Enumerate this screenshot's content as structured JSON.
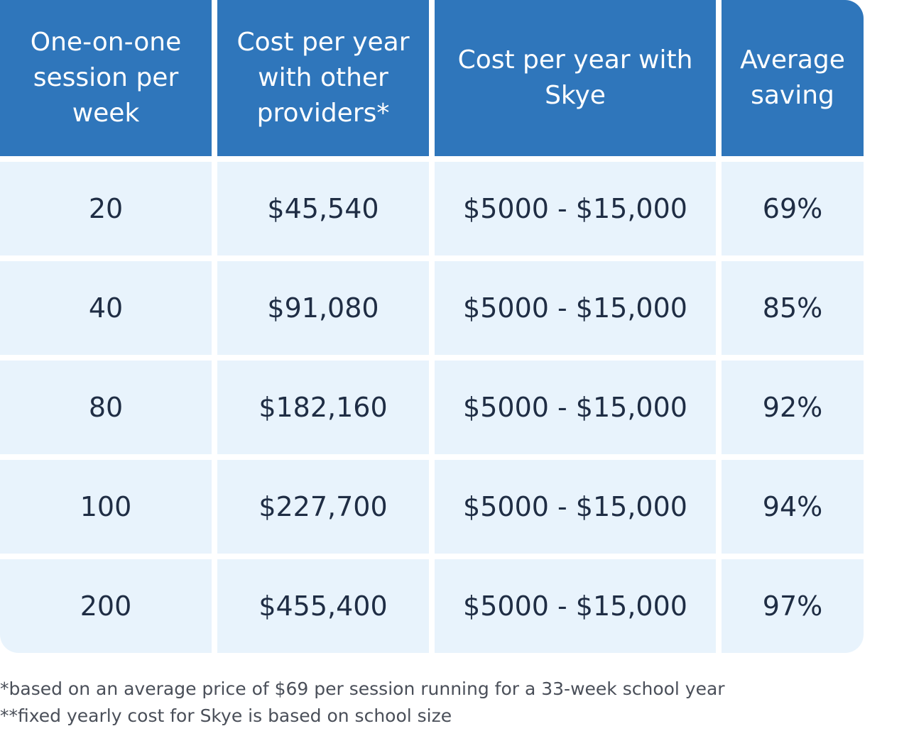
{
  "chart_data": {
    "type": "table",
    "columns": [
      "One-on-one session per week",
      "Cost per year with other providers*",
      "Cost per year with Skye",
      "Average saving"
    ],
    "rows": [
      [
        "20",
        "$45,540",
        "$5000 - $15,000",
        "69%"
      ],
      [
        "40",
        "$91,080",
        "$5000 - $15,000",
        "85%"
      ],
      [
        "80",
        "$182,160",
        "$5000 - $15,000",
        "92%"
      ],
      [
        "100",
        "$227,700",
        "$5000 - $15,000",
        "94%"
      ],
      [
        "200",
        "$455,400",
        "$5000 - $15,000",
        "97%"
      ]
    ]
  },
  "footnotes": [
    "*based on an average price of $69 per session running for a 33-week school year",
    "**fixed yearly cost for Skye is based on school size"
  ],
  "colors": {
    "header_bg": "#2f76bb",
    "header_text": "#ffffff",
    "body_bg": "#e8f3fc",
    "body_text": "#1f2d44",
    "footnote_text": "#4a4f59"
  }
}
